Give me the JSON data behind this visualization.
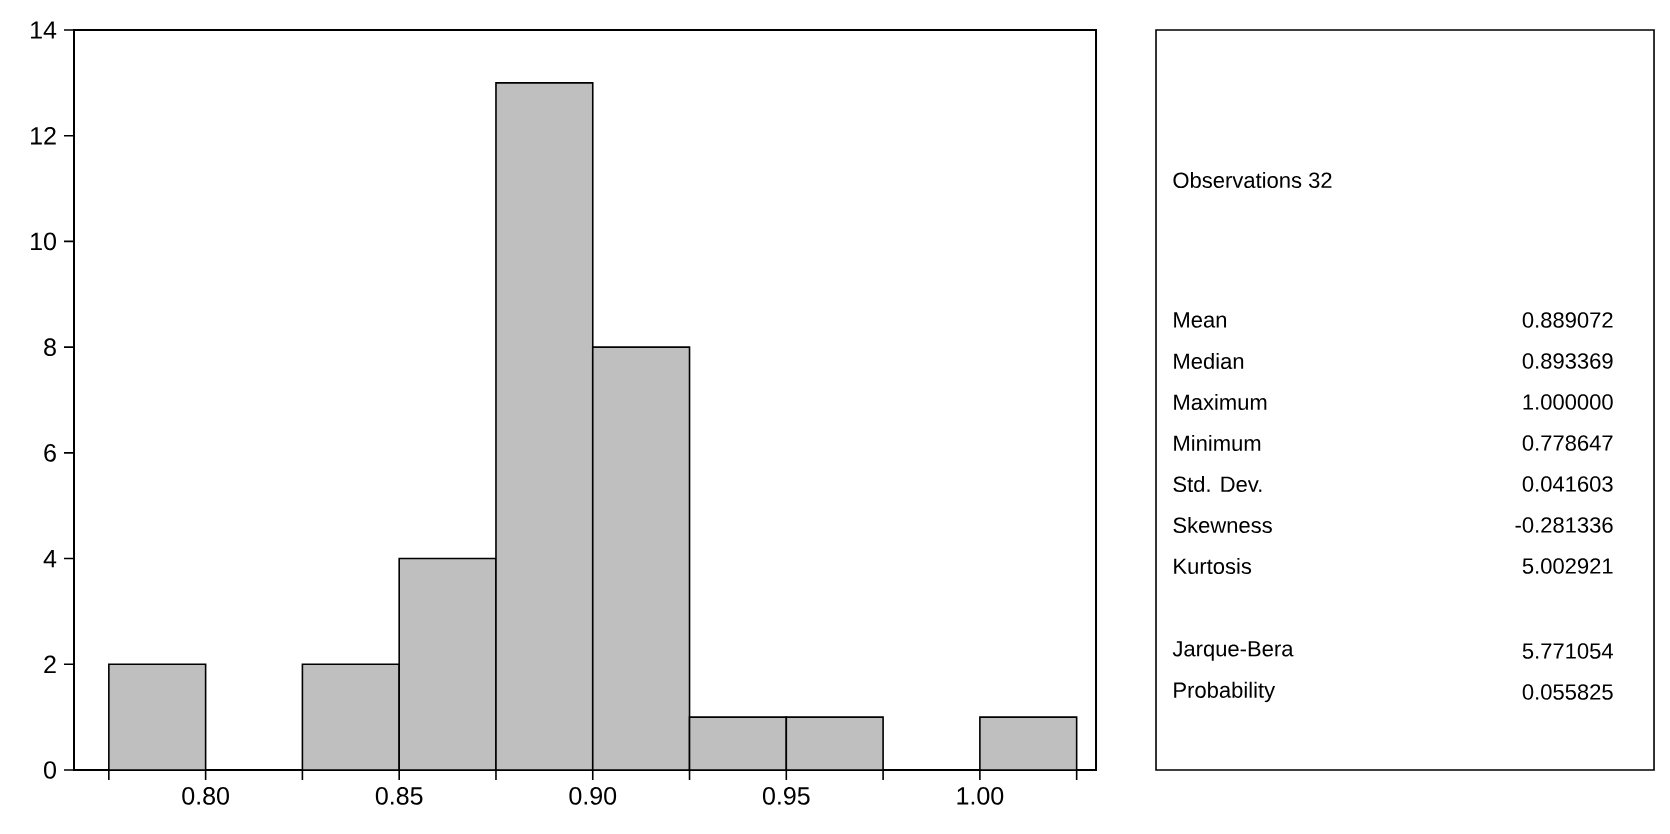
{
  "chart_data": {
    "type": "histogram",
    "bins": [
      0.775,
      0.8,
      0.825,
      0.85,
      0.875,
      0.9,
      0.925,
      0.95,
      0.975,
      1.0,
      1.025
    ],
    "values": [
      2,
      0,
      2,
      4,
      13,
      8,
      1,
      1,
      0,
      1
    ],
    "color": "#bfbfbf",
    "xlim": [
      0.766,
      1.03
    ],
    "ylim": [
      0,
      14
    ],
    "xticks": [
      {
        "value": 0.775,
        "label": null
      },
      {
        "value": 0.8,
        "label": "0.80"
      },
      {
        "value": 0.825,
        "label": null
      },
      {
        "value": 0.85,
        "label": "0.85"
      },
      {
        "value": 0.875,
        "label": null
      },
      {
        "value": 0.9,
        "label": "0.90"
      },
      {
        "value": 0.925,
        "label": null
      },
      {
        "value": 0.95,
        "label": "0.95"
      },
      {
        "value": 0.975,
        "label": null
      },
      {
        "value": 1.0,
        "label": "1.00"
      },
      {
        "value": 1.025,
        "label": null
      }
    ],
    "yticks": [
      0,
      2,
      4,
      6,
      8,
      10,
      12,
      14
    ],
    "annotations": [
      "Observations 32",
      "Mean",
      "0.889072",
      "Median",
      "0.893369",
      "Maximum",
      "1.000000",
      "Minimum",
      "0.778647",
      "Std. Dev.",
      "0.041603",
      "Skewness",
      "-0.281336",
      "Kurtosis",
      "5.002921",
      "Jarque-Bera",
      "5.771054",
      "Probability",
      "0.055825"
    ]
  }
}
